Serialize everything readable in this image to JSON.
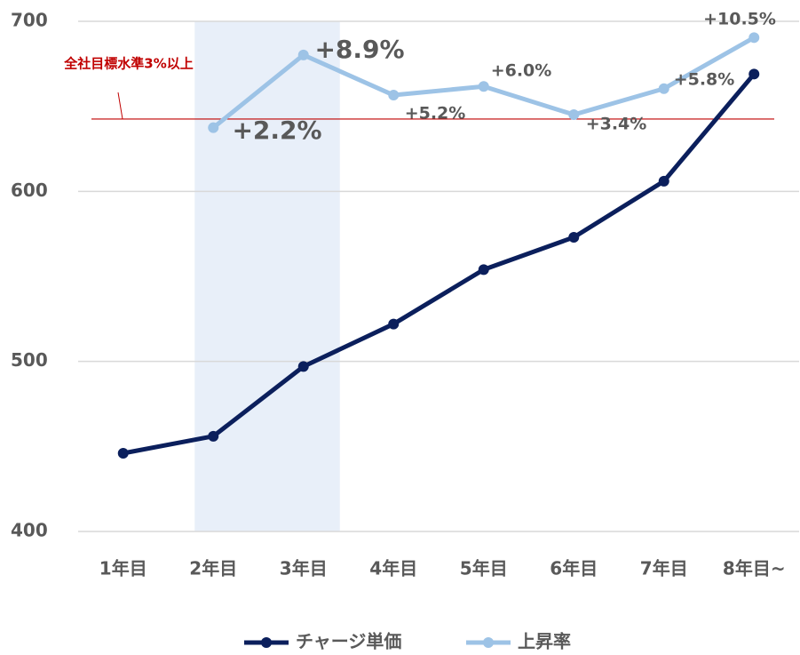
{
  "chart_data": {
    "type": "line",
    "categories": [
      "1年目",
      "2年目",
      "3年目",
      "4年目",
      "5年目",
      "6年目",
      "7年目",
      "8年目~"
    ],
    "series": [
      {
        "name": "チャージ単価",
        "color": "#0b1f5c",
        "values": [
          446,
          456,
          497,
          522,
          554,
          573,
          606,
          669
        ]
      },
      {
        "name": "上昇率",
        "color": "#9dc3e6",
        "axis": "y2",
        "values": [
          null,
          2.2,
          8.9,
          5.2,
          6.0,
          3.4,
          5.8,
          10.5
        ],
        "value_labels": [
          null,
          "+2.2%",
          "+8.9%",
          "+5.2%",
          "+6.0%",
          "+3.4%",
          "+5.8%",
          "+10.5%"
        ]
      }
    ],
    "ylim": [
      400,
      700
    ],
    "yticks": [
      400,
      500,
      600,
      700
    ],
    "y2lim": [
      -35,
      12
    ],
    "grid": true,
    "target": {
      "label": "全社目標水準3%以上",
      "value": 3,
      "axis": "y2",
      "color": "#c00000"
    },
    "legend": "bottom"
  }
}
